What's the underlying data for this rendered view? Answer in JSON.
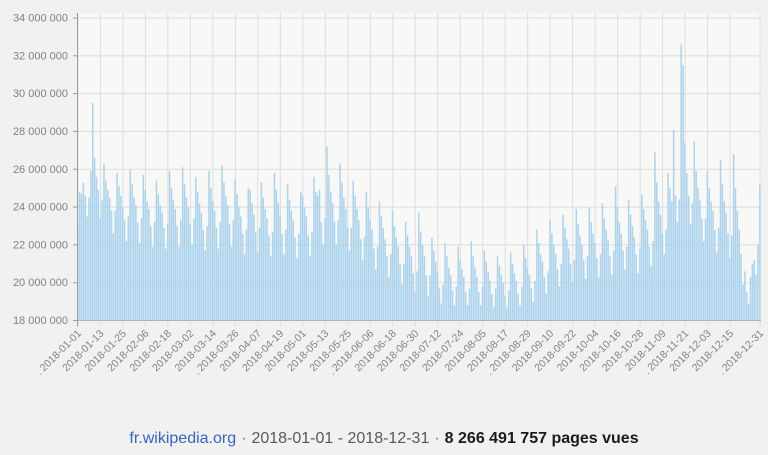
{
  "footer": {
    "site": "fr.wikipedia.org",
    "separator": "·",
    "date_range": "2018-01-01 - 2018-12-31",
    "total": "8 266 491 757 pages vues"
  },
  "colors": {
    "bar": "#abd3ed",
    "grid_horizontal": "#dcdcdc",
    "grid_vertical": "#dedede",
    "axis": "#9b9b9b",
    "baseline": "#b3b3b3",
    "tick_label": "#828282",
    "plot_background": "#f8f8f6",
    "page_background": "#f1f1ef",
    "link": "#3366cc"
  },
  "chart_data": {
    "type": "bar",
    "title": "",
    "xlabel": "",
    "ylabel": "",
    "legend": "none",
    "grid": true,
    "start_date": "2018-01-01",
    "end_date": "2018-12-31",
    "unit": "pages vues par jour",
    "ylim_millions": [
      18,
      34
    ],
    "y_ticks": [
      {
        "value_millions": 34,
        "label": "34 000 000"
      },
      {
        "value_millions": 32,
        "label": "32 000 000"
      },
      {
        "value_millions": 30,
        "label": "30 000 000"
      },
      {
        "value_millions": 28,
        "label": "28 000 000"
      },
      {
        "value_millions": 26,
        "label": "26 000 000"
      },
      {
        "value_millions": 24,
        "label": "24 000 000"
      },
      {
        "value_millions": 22,
        "label": "22 000 000"
      },
      {
        "value_millions": 20,
        "label": "20 000 000"
      },
      {
        "value_millions": 18,
        "label": "18 000 000"
      }
    ],
    "x_ticks": [
      {
        "day": 0,
        "label": "2018-01-01",
        "dot": true
      },
      {
        "day": 12,
        "label": "2018-01-13",
        "dot": false
      },
      {
        "day": 24,
        "label": "2018-01-25",
        "dot": false
      },
      {
        "day": 36,
        "label": "2018-02-06",
        "dot": false
      },
      {
        "day": 48,
        "label": "2018-02-18",
        "dot": false
      },
      {
        "day": 60,
        "label": "2018-03-02",
        "dot": false
      },
      {
        "day": 72,
        "label": "2018-03-14",
        "dot": false
      },
      {
        "day": 84,
        "label": "2018-03-26",
        "dot": true
      },
      {
        "day": 96,
        "label": "2018-04-07",
        "dot": false
      },
      {
        "day": 108,
        "label": "2018-04-19",
        "dot": false
      },
      {
        "day": 120,
        "label": "2018-05-01",
        "dot": false
      },
      {
        "day": 132,
        "label": "2018-05-13",
        "dot": false
      },
      {
        "day": 144,
        "label": "2018-05-25",
        "dot": false
      },
      {
        "day": 156,
        "label": "2018-06-06",
        "dot": true
      },
      {
        "day": 168,
        "label": "2018-06-18",
        "dot": false
      },
      {
        "day": 180,
        "label": "2018-06-30",
        "dot": false
      },
      {
        "day": 192,
        "label": "2018-07-12",
        "dot": false
      },
      {
        "day": 204,
        "label": "2018-07-24",
        "dot": false
      },
      {
        "day": 216,
        "label": "2018-08-05",
        "dot": false
      },
      {
        "day": 228,
        "label": "2018-08-17",
        "dot": false
      },
      {
        "day": 240,
        "label": "2018-08-29",
        "dot": true
      },
      {
        "day": 252,
        "label": "2018-09-10",
        "dot": false
      },
      {
        "day": 264,
        "label": "2018-09-22",
        "dot": false
      },
      {
        "day": 276,
        "label": "2018-10-04",
        "dot": false
      },
      {
        "day": 288,
        "label": "2018-10-16",
        "dot": false
      },
      {
        "day": 300,
        "label": "2018-10-28",
        "dot": false
      },
      {
        "day": 312,
        "label": "2018-11-09",
        "dot": false
      },
      {
        "day": 324,
        "label": "2018-11-21",
        "dot": true
      },
      {
        "day": 336,
        "label": "2018-12-03",
        "dot": false
      },
      {
        "day": 348,
        "label": "2018-12-15",
        "dot": false
      },
      {
        "day": 364,
        "label": "2018-12-31",
        "dot": true
      }
    ],
    "values_millions": [
      23.0,
      24.8,
      24.7,
      25.3,
      24.6,
      23.5,
      24.5,
      25.9,
      29.5,
      26.6,
      25.6,
      24.9,
      23.4,
      24.4,
      26.3,
      25.4,
      24.9,
      24.5,
      23.8,
      22.6,
      23.8,
      25.8,
      25.1,
      24.6,
      24.0,
      23.3,
      22.2,
      23.5,
      26.0,
      25.2,
      24.5,
      24.1,
      23.2,
      22.1,
      23.4,
      25.7,
      24.9,
      24.3,
      23.9,
      23.0,
      21.9,
      23.2,
      25.4,
      24.7,
      24.1,
      23.7,
      22.9,
      21.8,
      23.1,
      25.9,
      25.0,
      24.4,
      23.9,
      23.0,
      21.9,
      23.3,
      26.1,
      25.2,
      24.5,
      24.0,
      23.1,
      22.0,
      23.4,
      25.6,
      24.8,
      24.2,
      23.7,
      22.8,
      21.7,
      23.0,
      25.9,
      25.0,
      24.3,
      23.8,
      22.9,
      21.8,
      23.2,
      26.2,
      25.3,
      24.6,
      24.1,
      23.1,
      21.9,
      23.3,
      25.5,
      24.7,
      24.0,
      23.5,
      22.6,
      21.5,
      22.8,
      25.0,
      24.9,
      24.2,
      23.6,
      22.7,
      21.6,
      22.9,
      25.3,
      24.5,
      23.9,
      23.4,
      22.5,
      21.4,
      22.7,
      25.8,
      24.9,
      24.2,
      23.6,
      22.6,
      21.5,
      22.8,
      25.2,
      24.4,
      23.8,
      23.3,
      22.4,
      21.3,
      22.6,
      24.8,
      24.6,
      24.0,
      23.5,
      22.5,
      21.4,
      22.7,
      25.6,
      24.8,
      24.6,
      24.9,
      23.2,
      22.0,
      23.4,
      27.2,
      25.7,
      24.8,
      24.2,
      23.2,
      22.0,
      23.3,
      26.3,
      25.3,
      24.5,
      23.9,
      22.9,
      21.7,
      22.9,
      25.4,
      24.6,
      23.9,
      23.3,
      22.3,
      21.2,
      22.4,
      24.8,
      24.0,
      23.3,
      22.8,
      21.8,
      20.7,
      21.9,
      24.3,
      23.5,
      22.9,
      22.3,
      21.4,
      20.3,
      21.5,
      23.8,
      23.0,
      22.4,
      21.9,
      21.0,
      19.9,
      21.0,
      23.2,
      22.5,
      21.9,
      21.4,
      20.5,
      19.5,
      20.6,
      23.7,
      22.7,
      22.0,
      21.4,
      20.4,
      19.3,
      20.4,
      22.4,
      21.7,
      21.1,
      20.6,
      19.7,
      18.9,
      19.9,
      22.1,
      21.4,
      20.8,
      20.4,
      19.6,
      18.8,
      19.8,
      21.9,
      21.2,
      20.7,
      20.3,
      19.5,
      18.8,
      19.7,
      22.2,
      21.4,
      20.8,
      20.3,
      19.5,
      18.8,
      19.8,
      21.7,
      21.1,
      20.6,
      20.1,
      19.4,
      18.7,
      19.7,
      21.4,
      20.9,
      20.4,
      20.0,
      19.3,
      18.7,
      19.6,
      21.6,
      21.0,
      20.5,
      20.1,
      19.4,
      18.8,
      19.8,
      22.0,
      21.3,
      20.8,
      20.4,
      19.7,
      19.0,
      20.1,
      22.8,
      22.1,
      21.5,
      21.1,
      20.3,
      19.4,
      20.6,
      23.3,
      22.6,
      22.0,
      21.5,
      20.7,
      19.8,
      21.0,
      23.6,
      22.9,
      22.3,
      21.8,
      21.0,
      20.0,
      21.2,
      23.9,
      23.1,
      22.5,
      22.0,
      21.2,
      20.2,
      21.4,
      24.0,
      23.2,
      22.6,
      22.1,
      21.3,
      20.3,
      21.5,
      24.2,
      23.4,
      22.8,
      22.3,
      21.4,
      20.4,
      21.7,
      25.1,
      24.0,
      23.2,
      22.6,
      21.7,
      20.7,
      21.9,
      24.4,
      23.6,
      23.0,
      22.4,
      21.5,
      20.5,
      21.8,
      24.7,
      23.9,
      23.3,
      22.8,
      21.9,
      20.9,
      22.2,
      26.9,
      25.3,
      24.3,
      23.6,
      22.6,
      21.5,
      22.8,
      25.8,
      25.0,
      24.3,
      28.1,
      24.6,
      23.2,
      24.4,
      32.6,
      31.5,
      27.4,
      25.8,
      24.6,
      23.1,
      24.2,
      27.5,
      25.9,
      25.0,
      24.4,
      23.4,
      22.2,
      23.4,
      25.9,
      25.0,
      24.3,
      23.8,
      22.8,
      21.6,
      22.9,
      26.5,
      25.2,
      24.3,
      23.7,
      22.6,
      21.3,
      22.5,
      26.8,
      25.0,
      23.8,
      22.8,
      21.5,
      19.9,
      20.6,
      19.5,
      18.9,
      20.3,
      21.0,
      21.2,
      20.4,
      22.0,
      25.2
    ]
  }
}
